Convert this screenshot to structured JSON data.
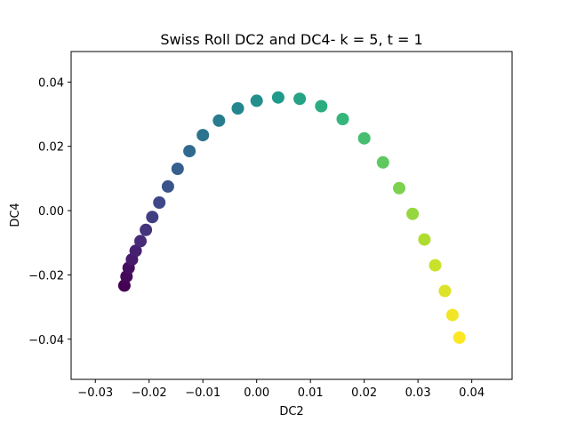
{
  "chart_data": {
    "type": "scatter",
    "title": "Swiss Roll DC2 and DC4- k = 5, t = 1",
    "xlabel": "DC2",
    "ylabel": "DC4",
    "xlim": [
      -0.0345,
      0.0475
    ],
    "ylim": [
      -0.0525,
      0.0495
    ],
    "xticks": [
      -0.03,
      -0.02,
      -0.01,
      0.0,
      0.01,
      0.02,
      0.03,
      0.04
    ],
    "xtick_labels": [
      "−0.03",
      "−0.02",
      "−0.01",
      "0.00",
      "0.01",
      "0.02",
      "0.03",
      "0.04"
    ],
    "yticks": [
      -0.04,
      -0.02,
      0.0,
      0.02,
      0.04
    ],
    "ytick_labels": [
      "−0.04",
      "−0.02",
      "0.00",
      "0.02",
      "0.04"
    ],
    "grid": false,
    "legend": false,
    "colormap": "viridis",
    "colormap_stops": [
      "#440154",
      "#482878",
      "#3e4989",
      "#31688e",
      "#26828e",
      "#1f9e89",
      "#35b779",
      "#6ece58",
      "#b5de2b",
      "#fde725"
    ],
    "points": [
      {
        "x": -0.0246,
        "y": -0.0233,
        "c": 0.0
      },
      {
        "x": -0.0242,
        "y": -0.0205,
        "c": 0.02
      },
      {
        "x": -0.0238,
        "y": -0.0178,
        "c": 0.04
      },
      {
        "x": -0.0232,
        "y": -0.0152,
        "c": 0.07
      },
      {
        "x": -0.0225,
        "y": -0.0125,
        "c": 0.09
      },
      {
        "x": -0.0216,
        "y": -0.0095,
        "c": 0.12
      },
      {
        "x": -0.0206,
        "y": -0.006,
        "c": 0.15
      },
      {
        "x": -0.0194,
        "y": -0.002,
        "c": 0.19
      },
      {
        "x": -0.0181,
        "y": 0.0025,
        "c": 0.22
      },
      {
        "x": -0.0165,
        "y": 0.0075,
        "c": 0.26
      },
      {
        "x": -0.0147,
        "y": 0.013,
        "c": 0.3
      },
      {
        "x": -0.0125,
        "y": 0.0185,
        "c": 0.34
      },
      {
        "x": -0.01,
        "y": 0.0235,
        "c": 0.38
      },
      {
        "x": -0.007,
        "y": 0.028,
        "c": 0.42
      },
      {
        "x": -0.0035,
        "y": 0.0318,
        "c": 0.46
      },
      {
        "x": 0.0,
        "y": 0.0342,
        "c": 0.5
      },
      {
        "x": 0.004,
        "y": 0.0352,
        "c": 0.54
      },
      {
        "x": 0.008,
        "y": 0.0348,
        "c": 0.58
      },
      {
        "x": 0.012,
        "y": 0.0325,
        "c": 0.62
      },
      {
        "x": 0.016,
        "y": 0.0285,
        "c": 0.66
      },
      {
        "x": 0.02,
        "y": 0.0225,
        "c": 0.7
      },
      {
        "x": 0.0235,
        "y": 0.015,
        "c": 0.75
      },
      {
        "x": 0.0265,
        "y": 0.007,
        "c": 0.8
      },
      {
        "x": 0.029,
        "y": -0.001,
        "c": 0.84
      },
      {
        "x": 0.0312,
        "y": -0.009,
        "c": 0.88
      },
      {
        "x": 0.0332,
        "y": -0.017,
        "c": 0.92
      },
      {
        "x": 0.035,
        "y": -0.025,
        "c": 0.95
      },
      {
        "x": 0.0364,
        "y": -0.0325,
        "c": 0.98
      },
      {
        "x": 0.0377,
        "y": -0.0395,
        "c": 1.0
      }
    ]
  }
}
